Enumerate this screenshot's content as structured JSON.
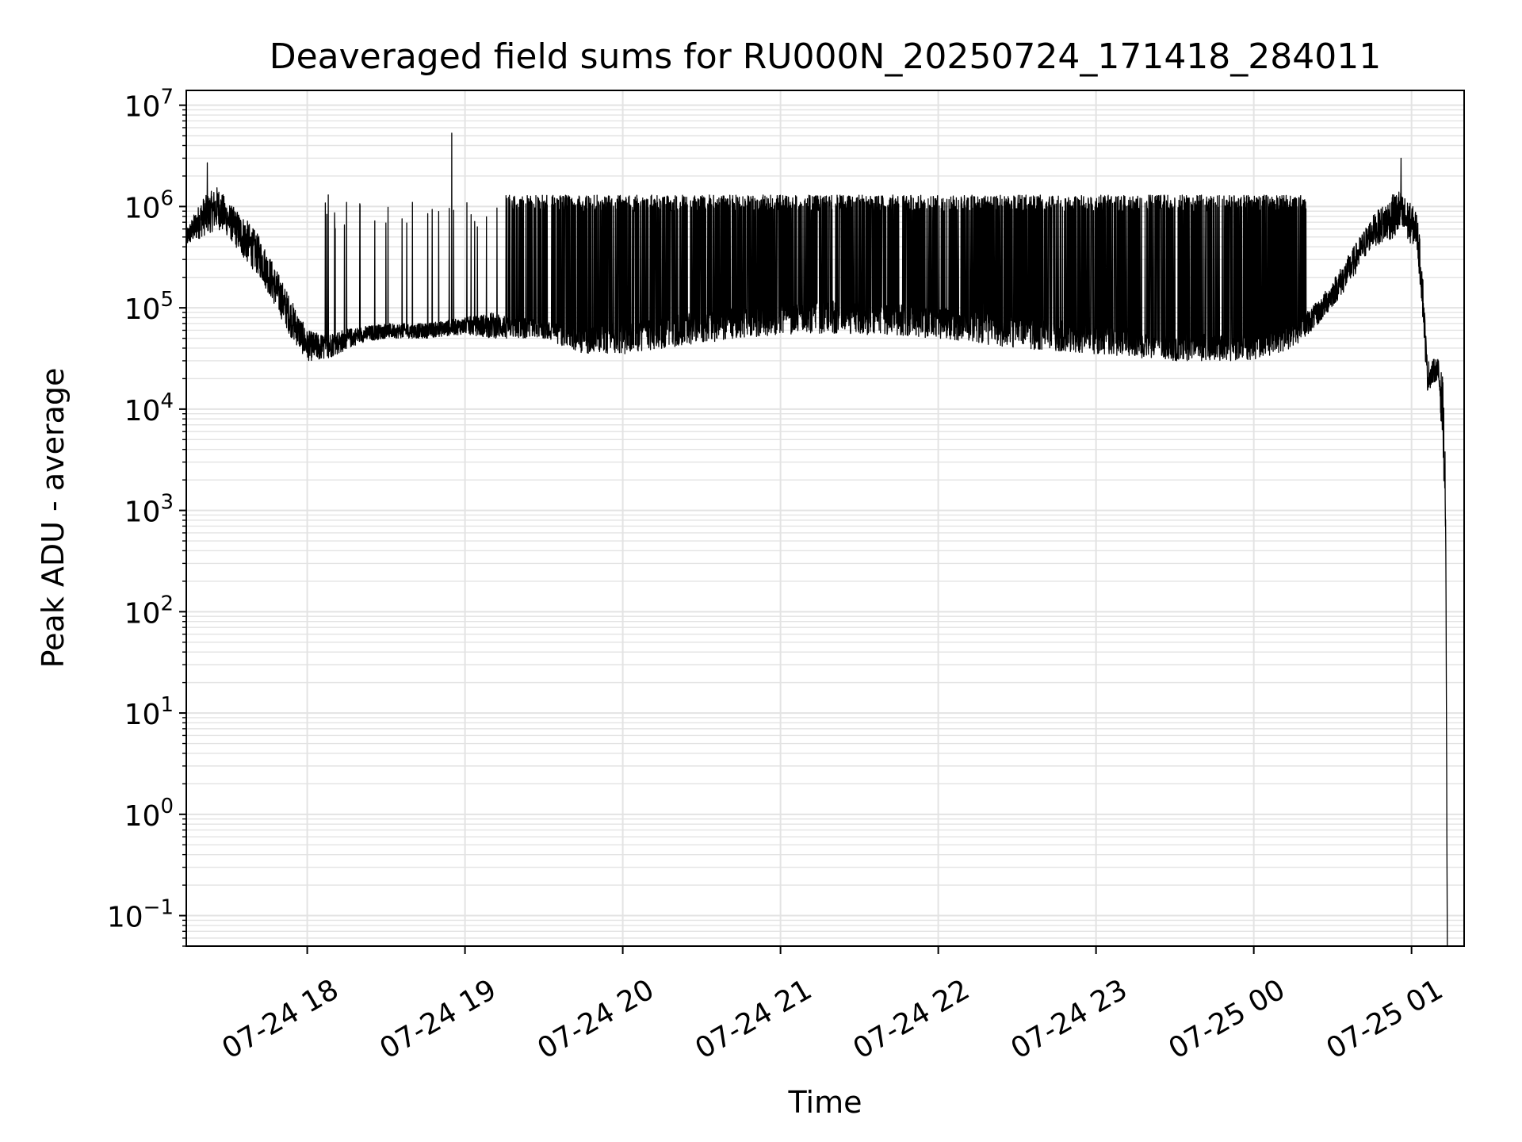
{
  "chart_data": {
    "type": "line",
    "title": "Deaveraged field sums for RU000N_20250724_171418_284011",
    "xlabel": "Time",
    "ylabel": "Peak ADU - average",
    "yscale": "log",
    "ylim": [
      0.05,
      14000000
    ],
    "xlim": [
      "07-24 17:14",
      "07-25 01:20"
    ],
    "grid": true,
    "line_color": "#000000",
    "grid_color": "#e3e3e3",
    "x_ticks": [
      {
        "t": "07-24 18:00",
        "label": "07-24 18"
      },
      {
        "t": "07-24 19:00",
        "label": "07-24 19"
      },
      {
        "t": "07-24 20:00",
        "label": "07-24 20"
      },
      {
        "t": "07-24 21:00",
        "label": "07-24 21"
      },
      {
        "t": "07-24 22:00",
        "label": "07-24 22"
      },
      {
        "t": "07-24 23:00",
        "label": "07-24 23"
      },
      {
        "t": "07-25 00:00",
        "label": "07-25 00"
      },
      {
        "t": "07-25 01:00",
        "label": "07-25 01"
      }
    ],
    "y_ticks": [
      {
        "exp": -1,
        "base": "10",
        "sup": "−1"
      },
      {
        "exp": 0,
        "base": "10",
        "sup": "0"
      },
      {
        "exp": 1,
        "base": "10",
        "sup": "1"
      },
      {
        "exp": 2,
        "base": "10",
        "sup": "2"
      },
      {
        "exp": 3,
        "base": "10",
        "sup": "3"
      },
      {
        "exp": 4,
        "base": "10",
        "sup": "4"
      },
      {
        "exp": 5,
        "base": "10",
        "sup": "5"
      },
      {
        "exp": 6,
        "base": "10",
        "sup": "6"
      },
      {
        "exp": 7,
        "base": "10",
        "sup": "7"
      }
    ],
    "series": [
      {
        "style": "noisy-envelope",
        "points": [
          {
            "t": "07-24 17:14",
            "low": 400000,
            "high": 600000
          },
          {
            "t": "07-24 17:20",
            "low": 500000,
            "high": 1200000
          },
          {
            "t": "07-24 17:26",
            "low": 600000,
            "high": 1600000
          },
          {
            "t": "07-24 17:30",
            "low": 500000,
            "high": 1100000
          },
          {
            "t": "07-24 17:36",
            "low": 300000,
            "high": 800000
          },
          {
            "t": "07-24 17:42",
            "low": 200000,
            "high": 500000
          },
          {
            "t": "07-24 17:48",
            "low": 100000,
            "high": 250000
          },
          {
            "t": "07-24 17:54",
            "low": 50000,
            "high": 120000
          },
          {
            "t": "07-24 18:00",
            "low": 30000,
            "high": 60000
          },
          {
            "t": "07-24 18:06",
            "low": 30000,
            "high": 55000
          },
          {
            "t": "07-24 18:12",
            "low": 35000,
            "high": 60000
          },
          {
            "t": "07-24 18:20",
            "low": 45000,
            "high": 65000
          },
          {
            "t": "07-24 18:30",
            "low": 50000,
            "high": 70000
          },
          {
            "t": "07-24 18:45",
            "low": 50000,
            "high": 70000
          },
          {
            "t": "07-24 19:00",
            "low": 55000,
            "high": 80000
          },
          {
            "t": "07-24 19:10",
            "low": 50000,
            "high": 90000
          },
          {
            "t": "07-24 19:30",
            "low": 50000,
            "high": 75000
          },
          {
            "t": "07-24 19:45",
            "low": 35000,
            "high": 60000
          },
          {
            "t": "07-24 20:00",
            "low": 35000,
            "high": 80000
          },
          {
            "t": "07-24 20:30",
            "low": 45000,
            "high": 90000
          },
          {
            "t": "07-24 21:00",
            "low": 55000,
            "high": 110000
          },
          {
            "t": "07-24 21:30",
            "low": 55000,
            "high": 120000
          },
          {
            "t": "07-24 22:00",
            "low": 50000,
            "high": 100000
          },
          {
            "t": "07-24 22:30",
            "low": 40000,
            "high": 80000
          },
          {
            "t": "07-24 23:00",
            "low": 35000,
            "high": 70000
          },
          {
            "t": "07-24 23:30",
            "low": 30000,
            "high": 55000
          },
          {
            "t": "07-25 00:00",
            "low": 30000,
            "high": 55000
          },
          {
            "t": "07-25 00:15",
            "low": 40000,
            "high": 70000
          },
          {
            "t": "07-25 00:25",
            "low": 70000,
            "high": 120000
          },
          {
            "t": "07-25 00:35",
            "low": 150000,
            "high": 300000
          },
          {
            "t": "07-25 00:45",
            "low": 400000,
            "high": 800000
          },
          {
            "t": "07-25 00:55",
            "low": 500000,
            "high": 1500000
          },
          {
            "t": "07-25 01:02",
            "low": 400000,
            "high": 900000
          },
          {
            "t": "07-25 01:04",
            "low": 100000,
            "high": 300000
          },
          {
            "t": "07-25 01:06",
            "low": 15000,
            "high": 30000
          },
          {
            "t": "07-25 01:10",
            "low": 20000,
            "high": 32000
          },
          {
            "t": "07-25 01:12",
            "low": 4000,
            "high": 20000
          },
          {
            "t": "07-25 01:13",
            "low": 400,
            "high": 2000
          },
          {
            "t": "07-25 01:13.6",
            "low": 0.05,
            "high": 0.05
          }
        ],
        "spikes": [
          {
            "t": "07-24 17:22",
            "value": 2700000
          },
          {
            "t": "07-24 18:55",
            "value": 5300000
          },
          {
            "t": "07-25 00:56",
            "value": 3000000
          },
          {
            "t": "07-24 18:08",
            "value": 1300000
          },
          {
            "t": "07-24 18:15",
            "value": 1100000
          },
          {
            "t": "07-24 18:40",
            "value": 1100000
          }
        ],
        "dense_spike_band": {
          "from": "07-24 19:15",
          "to": "07-25 00:20",
          "high": [
            900000,
            1300000
          ]
        }
      }
    ]
  }
}
